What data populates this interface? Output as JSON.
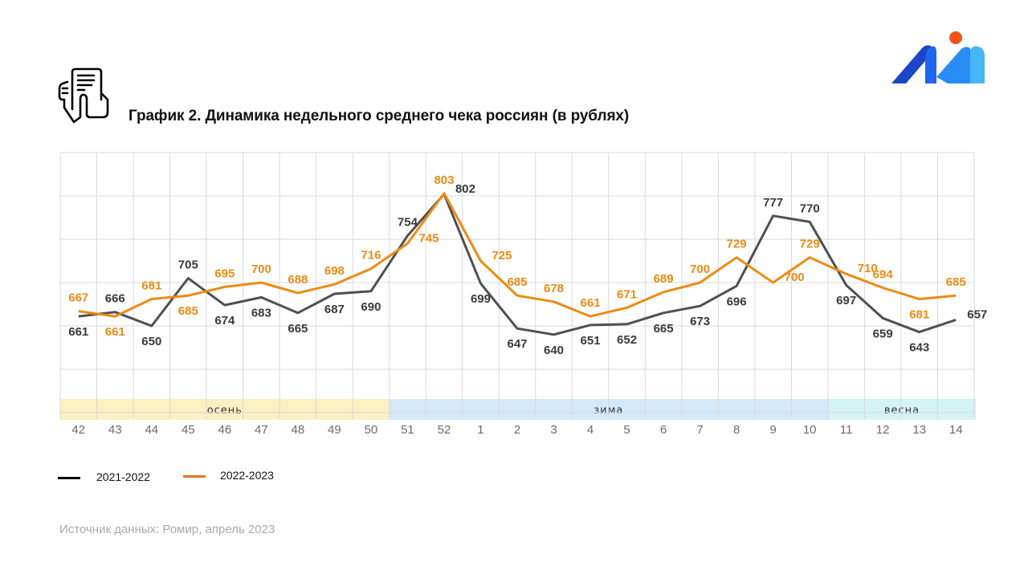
{
  "title": "График 2. Динамика недельного среднего чека россиян (в рублях)",
  "source": "Источник данных: Ромир, апрель 2023",
  "icons": {
    "header_icon": "receipt-in-hand-icon",
    "logo": "romir-logo"
  },
  "colors": {
    "series_2021_2022": "#505050",
    "series_2022_2023": "#ee8a14",
    "legend_2021_2022": "#000000",
    "legend_2022_2023": "#e8731e",
    "autumn": "#fbf0c2",
    "winter": "#d3e9fa",
    "spring": "#d4f3f3",
    "grid": "#d9d9d9"
  },
  "legend": [
    {
      "label": "2021-2022",
      "color": "#000000"
    },
    {
      "label": "2022-2023",
      "color": "#e8731e"
    }
  ],
  "chart_data": {
    "type": "line",
    "title": "График 2. Динамика недельного среднего чека россиян (в рублях)",
    "xlabel": "",
    "ylabel": "",
    "categories": [
      "42",
      "43",
      "44",
      "45",
      "46",
      "47",
      "48",
      "49",
      "50",
      "51",
      "52",
      "1",
      "2",
      "3",
      "4",
      "5",
      "6",
      "7",
      "8",
      "9",
      "10",
      "11",
      "12",
      "13",
      "14"
    ],
    "ylim": [
      550,
      850
    ],
    "y_gridlines": [
      600,
      650,
      700,
      750,
      800,
      850
    ],
    "grid": true,
    "y_tick_labels_shown": false,
    "legend_position": "bottom-left",
    "series": [
      {
        "name": "2021-2022",
        "values": [
          661,
          666,
          650,
          705,
          674,
          683,
          665,
          687,
          690,
          754,
          802,
          699,
          647,
          640,
          651,
          652,
          665,
          673,
          696,
          777,
          770,
          697,
          659,
          643,
          657
        ]
      },
      {
        "name": "2022-2023",
        "values": [
          667,
          661,
          681,
          685,
          695,
          700,
          688,
          698,
          716,
          745,
          803,
          725,
          685,
          678,
          661,
          671,
          689,
          700,
          729,
          700,
          729,
          710,
          694,
          681,
          685
        ]
      }
    ],
    "label_positions": {
      "2021-2022": [
        "below",
        "above",
        "below",
        "above",
        "below",
        "below",
        "below",
        "below",
        "below",
        "above",
        "right",
        "below",
        "below",
        "below",
        "below",
        "below",
        "below",
        "below",
        "below",
        "above",
        "above",
        "below",
        "below",
        "below",
        "right"
      ],
      "2022-2023": [
        "above",
        "below",
        "above",
        "below",
        "above",
        "above",
        "above",
        "above",
        "above",
        "right",
        "above",
        "right",
        "above",
        "above",
        "above",
        "above",
        "above",
        "above",
        "above",
        "right",
        "above",
        "right",
        "above",
        "below",
        "above"
      ]
    },
    "seasons": [
      {
        "label": "осень",
        "from": "42",
        "to": "50",
        "end_offset": 0.5
      },
      {
        "label": "зима",
        "from": "50",
        "to": "11",
        "start_offset": 0.5,
        "end_offset": -0.5
      },
      {
        "label": "весна",
        "from": "11",
        "to": "14",
        "start_offset": -0.5,
        "end_offset": 0.5
      }
    ]
  }
}
